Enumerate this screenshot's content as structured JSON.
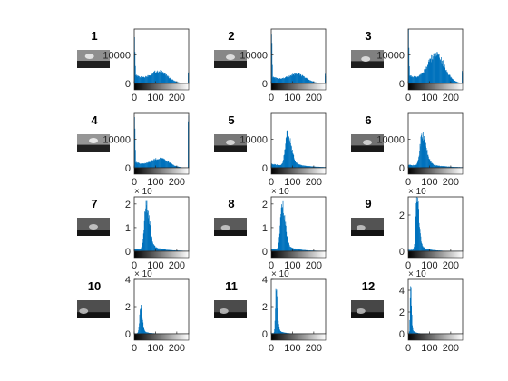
{
  "chart_data": [
    {
      "type": "bar",
      "label": "1",
      "yticks": [
        0,
        10000
      ],
      "ytick_labels": [
        "0",
        "10000"
      ],
      "ylim": [
        0,
        19000
      ],
      "xticks": [
        0,
        100,
        200
      ],
      "xtick_labels": [
        "0",
        "100",
        "200"
      ],
      "exponent": "",
      "shape": {
        "kind": "bimodal-low",
        "left_spike": 19000,
        "base": 3000,
        "peak2": [
          115,
          3800
        ],
        "right_spike": 3500
      },
      "thumb": {
        "brightness": 0.55,
        "sun": [
          0.38,
          0.35
        ],
        "horizon": 0.6
      }
    },
    {
      "type": "bar",
      "label": "2",
      "yticks": [
        0,
        10000
      ],
      "ytick_labels": [
        "0",
        "10000"
      ],
      "ylim": [
        0,
        19000
      ],
      "xticks": [
        0,
        100,
        200
      ],
      "xtick_labels": [
        "0",
        "100",
        "200"
      ],
      "exponent": "",
      "shape": {
        "kind": "bimodal-low",
        "left_spike": 19000,
        "base": 2500,
        "peak2": [
          120,
          3000
        ],
        "right_spike": 3000
      },
      "thumb": {
        "brightness": 0.5,
        "sun": [
          0.5,
          0.4
        ],
        "horizon": 0.6
      }
    },
    {
      "type": "bar",
      "label": "3",
      "yticks": [
        0,
        10000
      ],
      "ytick_labels": [
        "0",
        "10000"
      ],
      "ylim": [
        0,
        19000
      ],
      "xticks": [
        0,
        100,
        200
      ],
      "xtick_labels": [
        "0",
        "100",
        "200"
      ],
      "exponent": "",
      "shape": {
        "kind": "bimodal-mid",
        "left_spike": 19000,
        "base": 3000,
        "peak2": [
          130,
          9500
        ],
        "right_spike": 4000
      },
      "thumb": {
        "brightness": 0.45,
        "sun": [
          0.45,
          0.5
        ],
        "horizon": 0.62
      }
    },
    {
      "type": "bar",
      "label": "4",
      "yticks": [
        0,
        10000
      ],
      "ytick_labels": [
        "0",
        "10000"
      ],
      "ylim": [
        0,
        19000
      ],
      "xticks": [
        0,
        100,
        200
      ],
      "xtick_labels": [
        "0",
        "100",
        "200"
      ],
      "exponent": "",
      "shape": {
        "kind": "bimodal-low",
        "left_spike": 19000,
        "base": 2000,
        "peak2": [
          120,
          3000
        ],
        "right_spike": 19000
      },
      "thumb": {
        "brightness": 0.6,
        "sun": [
          0.5,
          0.35
        ],
        "horizon": 0.58
      }
    },
    {
      "type": "bar",
      "label": "5",
      "yticks": [
        0,
        10000
      ],
      "ytick_labels": [
        "0",
        "10000"
      ],
      "ylim": [
        0,
        19000
      ],
      "xticks": [
        0,
        100,
        200
      ],
      "xtick_labels": [
        "0",
        "100",
        "200"
      ],
      "exponent": "",
      "shape": {
        "kind": "peak",
        "peak": [
          75,
          11000
        ],
        "width": 18,
        "tail": 0.12
      },
      "thumb": {
        "brightness": 0.4,
        "sun": [
          0.5,
          0.45
        ],
        "horizon": 0.62
      }
    },
    {
      "type": "bar",
      "label": "6",
      "yticks": [
        0,
        10000
      ],
      "ytick_labels": [
        "0",
        "10000"
      ],
      "ylim": [
        0,
        19000
      ],
      "xticks": [
        0,
        100,
        200
      ],
      "xtick_labels": [
        "0",
        "100",
        "200"
      ],
      "exponent": "",
      "shape": {
        "kind": "peak",
        "peak": [
          65,
          11000
        ],
        "width": 18,
        "tail": 0.1
      },
      "thumb": {
        "brightness": 0.35,
        "sun": [
          0.5,
          0.45
        ],
        "horizon": 0.62
      }
    },
    {
      "type": "bar",
      "label": "7",
      "yticks": [
        0,
        1,
        2
      ],
      "ytick_labels": [
        "0",
        "1",
        "2"
      ],
      "ylim": [
        0,
        2.3
      ],
      "xticks": [
        0,
        100,
        200
      ],
      "xtick_labels": [
        "0",
        "100",
        "200"
      ],
      "exponent": "× 10",
      "shape": {
        "kind": "peak",
        "peak": [
          55,
          2.0
        ],
        "width": 15,
        "tail": 0.05
      },
      "thumb": {
        "brightness": 0.22,
        "sun": [
          0.5,
          0.5
        ],
        "horizon": 0.65
      }
    },
    {
      "type": "bar",
      "label": "8",
      "yticks": [
        0,
        1,
        2
      ],
      "ytick_labels": [
        "0",
        "1",
        "2"
      ],
      "ylim": [
        0,
        2.3
      ],
      "xticks": [
        0,
        100,
        200
      ],
      "xtick_labels": [
        "0",
        "100",
        "200"
      ],
      "exponent": "× 10",
      "shape": {
        "kind": "peak",
        "peak": [
          50,
          1.9
        ],
        "width": 14,
        "tail": 0.05
      },
      "thumb": {
        "brightness": 0.2,
        "sun": [
          0.35,
          0.55
        ],
        "horizon": 0.65
      }
    },
    {
      "type": "bar",
      "label": "9",
      "yticks": [
        0,
        2
      ],
      "ytick_labels": [
        "0",
        "2"
      ],
      "ylim": [
        0,
        3.0
      ],
      "xticks": [
        0,
        100,
        200
      ],
      "xtick_labels": [
        "0",
        "100",
        "200"
      ],
      "exponent": "× 10",
      "shape": {
        "kind": "peak",
        "peak": [
          40,
          2.8
        ],
        "width": 10,
        "tail": 0.03
      },
      "thumb": {
        "brightness": 0.15,
        "sun": [
          0.3,
          0.55
        ],
        "horizon": 0.66
      }
    },
    {
      "type": "bar",
      "label": "10",
      "yticks": [
        0,
        2,
        4
      ],
      "ytick_labels": [
        "0",
        "2",
        "4"
      ],
      "ylim": [
        0,
        4.0
      ],
      "xticks": [
        0,
        100,
        200
      ],
      "xtick_labels": [
        "0",
        "100",
        "200"
      ],
      "exponent": "× 10",
      "shape": {
        "kind": "peak",
        "peak": [
          28,
          1.9
        ],
        "width": 8,
        "tail": 0.02
      },
      "thumb": {
        "brightness": 0.12,
        "sun": [
          0.2,
          0.6
        ],
        "horizon": 0.66
      }
    },
    {
      "type": "bar",
      "label": "11",
      "yticks": [
        0,
        2,
        4
      ],
      "ytick_labels": [
        "0",
        "2",
        "4"
      ],
      "ylim": [
        0,
        4.0
      ],
      "xticks": [
        0,
        100,
        200
      ],
      "xtick_labels": [
        "0",
        "100",
        "200"
      ],
      "exponent": "× 10",
      "shape": {
        "kind": "peak",
        "peak": [
          22,
          3.3
        ],
        "width": 6,
        "tail": 0.015
      },
      "thumb": {
        "brightness": 0.1,
        "sun": [
          0.3,
          0.6
        ],
        "horizon": 0.66
      }
    },
    {
      "type": "bar",
      "label": "12",
      "yticks": [
        0,
        2,
        4
      ],
      "ytick_labels": [
        "0",
        "2",
        "4"
      ],
      "ylim": [
        0,
        5.0
      ],
      "xticks": [
        0,
        100,
        200
      ],
      "xtick_labels": [
        "0",
        "100",
        "200"
      ],
      "exponent": "× 10",
      "shape": {
        "kind": "peak",
        "peak": [
          10,
          4.5
        ],
        "width": 4,
        "tail": 0.01
      },
      "thumb": {
        "brightness": 0.07,
        "sun": [
          0.3,
          0.6
        ],
        "horizon": 0.66
      }
    }
  ],
  "colors": {
    "bar": "#0072BD",
    "axis": "#262626",
    "background": "#ffffff"
  }
}
